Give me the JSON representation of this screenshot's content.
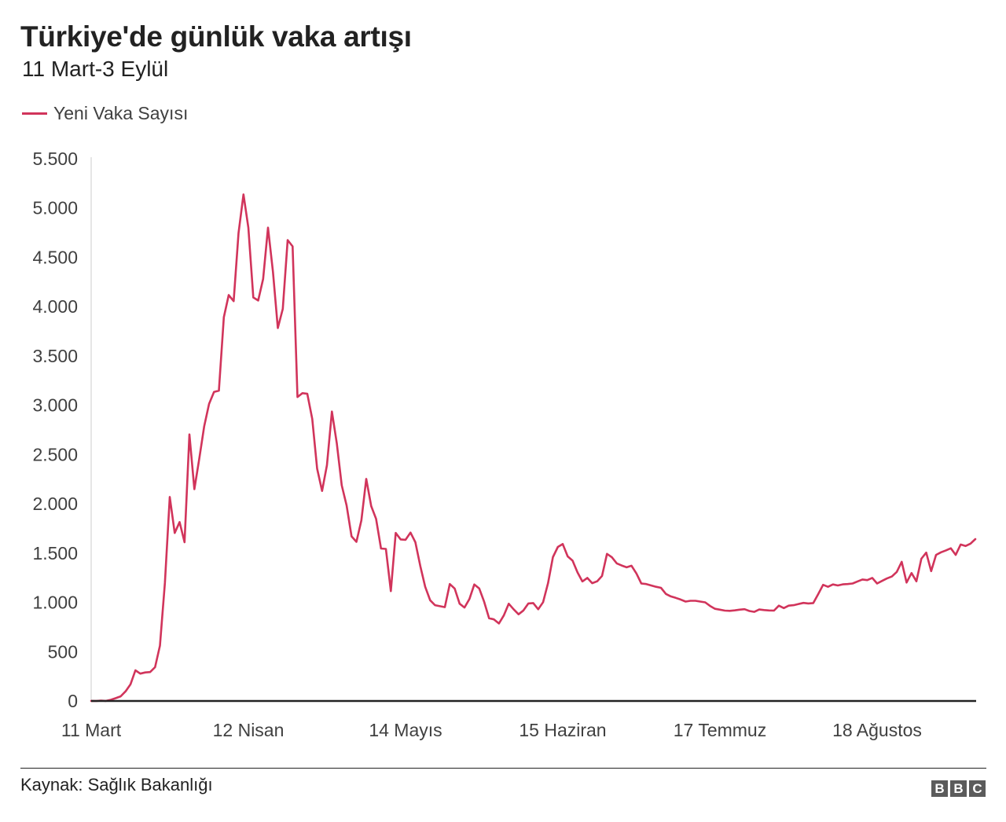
{
  "header": {
    "title": "Türkiye'de günlük vaka artışı",
    "subtitle": "11 Mart-3 Eylül"
  },
  "footer": {
    "source": "Kaynak: Sağlık Bakanlığı",
    "logo": [
      "B",
      "B",
      "C"
    ]
  },
  "colors": {
    "series": "#d1345b",
    "axis": "#222222",
    "text": "#404040"
  },
  "chart_data": {
    "type": "line",
    "title": "Türkiye'de günlük vaka artışı",
    "subtitle": "11 Mart-3 Eylül",
    "xlabel": "",
    "ylabel": "",
    "ylim": [
      0,
      5500
    ],
    "grid": false,
    "legend_position": "top-left",
    "y_ticks": [
      0,
      500,
      1000,
      1500,
      2000,
      2500,
      3000,
      3500,
      4000,
      4500,
      5000,
      5500
    ],
    "y_tick_labels": [
      "0",
      "500",
      "1.000",
      "1.500",
      "2.000",
      "2.500",
      "3.000",
      "3.500",
      "4.000",
      "4.500",
      "5.000",
      "5.500"
    ],
    "x_ticks": [
      {
        "label": "11 Mart",
        "day": 0
      },
      {
        "label": "12 Nisan",
        "day": 32
      },
      {
        "label": "14 Mayıs",
        "day": 64
      },
      {
        "label": "15 Haziran",
        "day": 96
      },
      {
        "label": "17 Temmuz",
        "day": 128
      },
      {
        "label": "18 Ağustos",
        "day": 160
      }
    ],
    "x_start": "2020-03-11",
    "series": [
      {
        "name": "Yeni Vaka Sayısı",
        "values": [
          1,
          0,
          4,
          1,
          12,
          29,
          47,
          98,
          168,
          311,
          277,
          289,
          293,
          343,
          561,
          1196,
          2069,
          1704,
          1815,
          1610,
          2704,
          2148,
          2456,
          2786,
          3013,
          3135,
          3148,
          3892,
          4117,
          4056,
          4747,
          5138,
          4801,
          4093,
          4062,
          4281,
          4801,
          4353,
          3783,
          3977,
          4674,
          4611,
          3083,
          3122,
          3116,
          2861,
          2357,
          2131,
          2392,
          2936,
          2615,
          2188,
          1983,
          1670,
          1614,
          1832,
          2253,
          1977,
          1848,
          1546,
          1542,
          1114,
          1704,
          1639,
          1635,
          1708,
          1610,
          1368,
          1158,
          1022,
          972,
          961,
          952,
          1186,
          1141,
          987,
          948,
          1035,
          1182,
          1141,
          1007,
          839,
          827,
          786,
          867,
          987,
          930,
          879,
          918,
          989,
          993,
          930,
          1002,
          1195,
          1459,
          1562,
          1592,
          1467,
          1424,
          1304,
          1212,
          1248,
          1195,
          1214,
          1268,
          1492,
          1458,
          1396,
          1374,
          1356,
          1372,
          1293,
          1192,
          1186,
          1172,
          1158,
          1148,
          1086,
          1061,
          1046,
          1029,
          1008,
          1016,
          1016,
          1008,
          1000,
          964,
          935,
          926,
          917,
          914,
          919,
          926,
          931,
          913,
          904,
          928,
          922,
          918,
          917,
          967,
          942,
          967,
          972,
          984,
          995,
          989,
          993,
          1083,
          1178,
          1158,
          1182,
          1172,
          1183,
          1186,
          1192,
          1212,
          1232,
          1226,
          1248,
          1192,
          1218,
          1243,
          1263,
          1309,
          1412,
          1201,
          1298,
          1214,
          1443,
          1505,
          1317,
          1482,
          1508,
          1527,
          1549,
          1482,
          1587,
          1572,
          1596,
          1642
        ]
      }
    ]
  }
}
